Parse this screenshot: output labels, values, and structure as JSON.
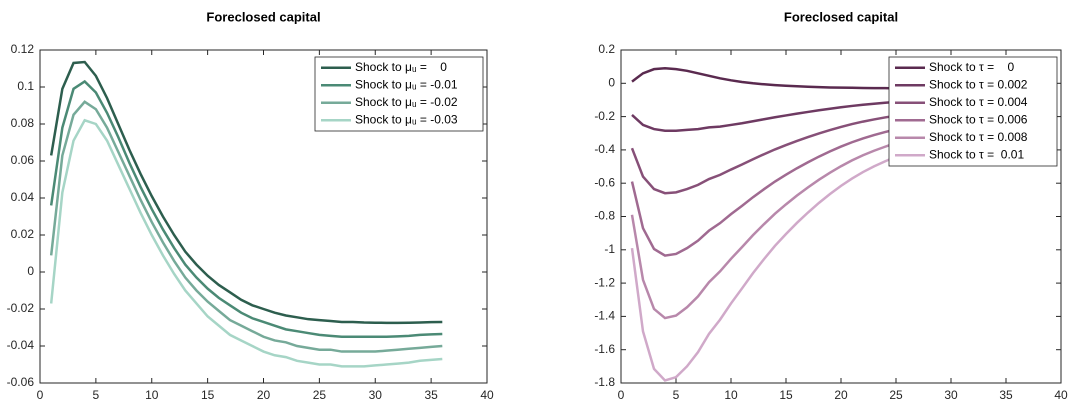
{
  "chart_data": [
    {
      "type": "line",
      "title": "Foreclosed capital",
      "legend": "upper right",
      "x": [
        1,
        2,
        3,
        4,
        5,
        6,
        7,
        8,
        9,
        10,
        11,
        12,
        13,
        14,
        15,
        16,
        17,
        18,
        19,
        20,
        21,
        22,
        23,
        24,
        25,
        26,
        27,
        28,
        29,
        30,
        31,
        32,
        33,
        34,
        35,
        36
      ],
      "xlim": [
        0,
        40
      ],
      "xticks": [
        0,
        5,
        10,
        15,
        20,
        25,
        30,
        35,
        40
      ],
      "ylim": [
        -0.06,
        0.12
      ],
      "yticks": [
        -0.06,
        -0.04,
        -0.02,
        0,
        0.02,
        0.04,
        0.06,
        0.08,
        0.1,
        0.12
      ],
      "series": [
        {
          "name": "Shock to μᵤ =    0",
          "color": "#2d5e4e",
          "values": [
            0.063,
            0.099,
            0.113,
            0.1135,
            0.106,
            0.094,
            0.08,
            0.066,
            0.053,
            0.041,
            0.03,
            0.02,
            0.011,
            0.004,
            -0.002,
            -0.007,
            -0.011,
            -0.015,
            -0.018,
            -0.02,
            -0.022,
            -0.0235,
            -0.0245,
            -0.0255,
            -0.026,
            -0.0265,
            -0.027,
            -0.027,
            -0.0273,
            -0.0274,
            -0.0275,
            -0.0275,
            -0.0274,
            -0.0273,
            -0.0271,
            -0.027
          ]
        },
        {
          "name": "Shock to μᵤ = -0.01",
          "color": "#4b8a75",
          "values": [
            0.036,
            0.078,
            0.099,
            0.103,
            0.097,
            0.086,
            0.073,
            0.059,
            0.046,
            0.034,
            0.023,
            0.013,
            0.004,
            -0.003,
            -0.009,
            -0.014,
            -0.018,
            -0.022,
            -0.025,
            -0.027,
            -0.029,
            -0.031,
            -0.032,
            -0.033,
            -0.034,
            -0.0345,
            -0.035,
            -0.035,
            -0.035,
            -0.035,
            -0.035,
            -0.0348,
            -0.0345,
            -0.034,
            -0.0337,
            -0.0335
          ]
        },
        {
          "name": "Shock to μᵤ = -0.02",
          "color": "#76aa99",
          "values": [
            0.009,
            0.063,
            0.085,
            0.092,
            0.088,
            0.078,
            0.065,
            0.052,
            0.039,
            0.027,
            0.016,
            0.006,
            -0.003,
            -0.01,
            -0.016,
            -0.021,
            -0.026,
            -0.029,
            -0.032,
            -0.035,
            -0.037,
            -0.038,
            -0.04,
            -0.041,
            -0.042,
            -0.042,
            -0.043,
            -0.043,
            -0.043,
            -0.043,
            -0.0425,
            -0.042,
            -0.0415,
            -0.041,
            -0.0405,
            -0.04
          ]
        },
        {
          "name": "Shock to μᵤ = -0.03",
          "color": "#a6d5c6",
          "values": [
            -0.017,
            0.043,
            0.071,
            0.082,
            0.08,
            0.071,
            0.058,
            0.045,
            0.032,
            0.02,
            0.009,
            -0.001,
            -0.01,
            -0.017,
            -0.024,
            -0.029,
            -0.034,
            -0.037,
            -0.04,
            -0.043,
            -0.045,
            -0.046,
            -0.048,
            -0.049,
            -0.05,
            -0.05,
            -0.051,
            -0.051,
            -0.051,
            -0.0505,
            -0.05,
            -0.0495,
            -0.049,
            -0.048,
            -0.0475,
            -0.047
          ]
        }
      ]
    },
    {
      "type": "line",
      "title": "Foreclosed capital",
      "legend": "upper right",
      "x": [
        1,
        2,
        3,
        4,
        5,
        6,
        7,
        8,
        9,
        10,
        11,
        12,
        13,
        14,
        15,
        16,
        17,
        18,
        19,
        20,
        21,
        22,
        23,
        24,
        25,
        26,
        27,
        28,
        29,
        30,
        31,
        32,
        33,
        34,
        35,
        36
      ],
      "xlim": [
        0,
        40
      ],
      "xticks": [
        0,
        5,
        10,
        15,
        20,
        25,
        30,
        35,
        40
      ],
      "ylim": [
        -1.8,
        0.2
      ],
      "yticks": [
        -1.8,
        -1.6,
        -1.4,
        -1.2,
        -1,
        -0.8,
        -0.6,
        -0.4,
        -0.2,
        0,
        0.2
      ],
      "series": [
        {
          "name": "Shock to τ =    0",
          "color": "#5a2a4f",
          "values": [
            0.01,
            0.06,
            0.085,
            0.09,
            0.085,
            0.075,
            0.06,
            0.045,
            0.03,
            0.018,
            0.008,
            0.0,
            -0.006,
            -0.011,
            -0.015,
            -0.018,
            -0.021,
            -0.023,
            -0.025,
            -0.026,
            -0.027,
            -0.028,
            -0.029,
            -0.029,
            -0.03,
            -0.03,
            -0.03,
            -0.03,
            -0.03,
            -0.03,
            -0.029,
            -0.029,
            -0.028,
            -0.028,
            -0.027,
            -0.027
          ]
        },
        {
          "name": "Shock to τ = 0.002",
          "color": "#6e3a62",
          "values": [
            -0.19,
            -0.25,
            -0.275,
            -0.285,
            -0.285,
            -0.28,
            -0.275,
            -0.265,
            -0.26,
            -0.25,
            -0.24,
            -0.228,
            -0.216,
            -0.204,
            -0.193,
            -0.182,
            -0.172,
            -0.162,
            -0.153,
            -0.144,
            -0.136,
            -0.129,
            -0.123,
            -0.117,
            -0.112,
            -0.107,
            -0.102,
            -0.098,
            -0.094,
            -0.091,
            -0.087,
            -0.084,
            -0.081,
            -0.079,
            -0.076,
            -0.074
          ]
        },
        {
          "name": "Shock to τ = 0.004",
          "color": "#875078",
          "values": [
            -0.39,
            -0.56,
            -0.635,
            -0.66,
            -0.655,
            -0.635,
            -0.61,
            -0.575,
            -0.55,
            -0.518,
            -0.488,
            -0.456,
            -0.426,
            -0.397,
            -0.371,
            -0.346,
            -0.323,
            -0.301,
            -0.281,
            -0.262,
            -0.245,
            -0.23,
            -0.217,
            -0.205,
            -0.194,
            -0.184,
            -0.174,
            -0.166,
            -0.158,
            -0.152,
            -0.145,
            -0.139,
            -0.134,
            -0.13,
            -0.125,
            -0.121
          ]
        },
        {
          "name": "Shock to τ = 0.006",
          "color": "#a06a91",
          "values": [
            -0.59,
            -0.87,
            -0.995,
            -1.035,
            -1.025,
            -0.99,
            -0.945,
            -0.885,
            -0.84,
            -0.786,
            -0.736,
            -0.684,
            -0.636,
            -0.59,
            -0.549,
            -0.51,
            -0.474,
            -0.44,
            -0.409,
            -0.38,
            -0.354,
            -0.331,
            -0.311,
            -0.293,
            -0.276,
            -0.261,
            -0.246,
            -0.234,
            -0.222,
            -0.213,
            -0.203,
            -0.194,
            -0.187,
            -0.181,
            -0.174,
            -0.168
          ]
        },
        {
          "name": "Shock to τ = 0.008",
          "color": "#b888ab",
          "values": [
            -0.79,
            -1.18,
            -1.355,
            -1.41,
            -1.395,
            -1.345,
            -1.28,
            -1.195,
            -1.13,
            -1.054,
            -0.984,
            -0.912,
            -0.846,
            -0.783,
            -0.727,
            -0.674,
            -0.625,
            -0.579,
            -0.537,
            -0.498,
            -0.463,
            -0.432,
            -0.405,
            -0.381,
            -0.358,
            -0.338,
            -0.318,
            -0.302,
            -0.286,
            -0.274,
            -0.261,
            -0.249,
            -0.24,
            -0.232,
            -0.223,
            -0.215
          ]
        },
        {
          "name": "Shock to τ =  0.01",
          "color": "#d0a9c9",
          "values": [
            -0.99,
            -1.49,
            -1.715,
            -1.785,
            -1.765,
            -1.7,
            -1.615,
            -1.505,
            -1.42,
            -1.322,
            -1.232,
            -1.14,
            -1.056,
            -0.976,
            -0.905,
            -0.838,
            -0.776,
            -0.718,
            -0.665,
            -0.616,
            -0.572,
            -0.533,
            -0.499,
            -0.469,
            -0.44,
            -0.415,
            -0.39,
            -0.37,
            -0.35,
            -0.335,
            -0.319,
            -0.304,
            -0.293,
            -0.283,
            -0.272,
            -0.262
          ]
        }
      ]
    }
  ]
}
